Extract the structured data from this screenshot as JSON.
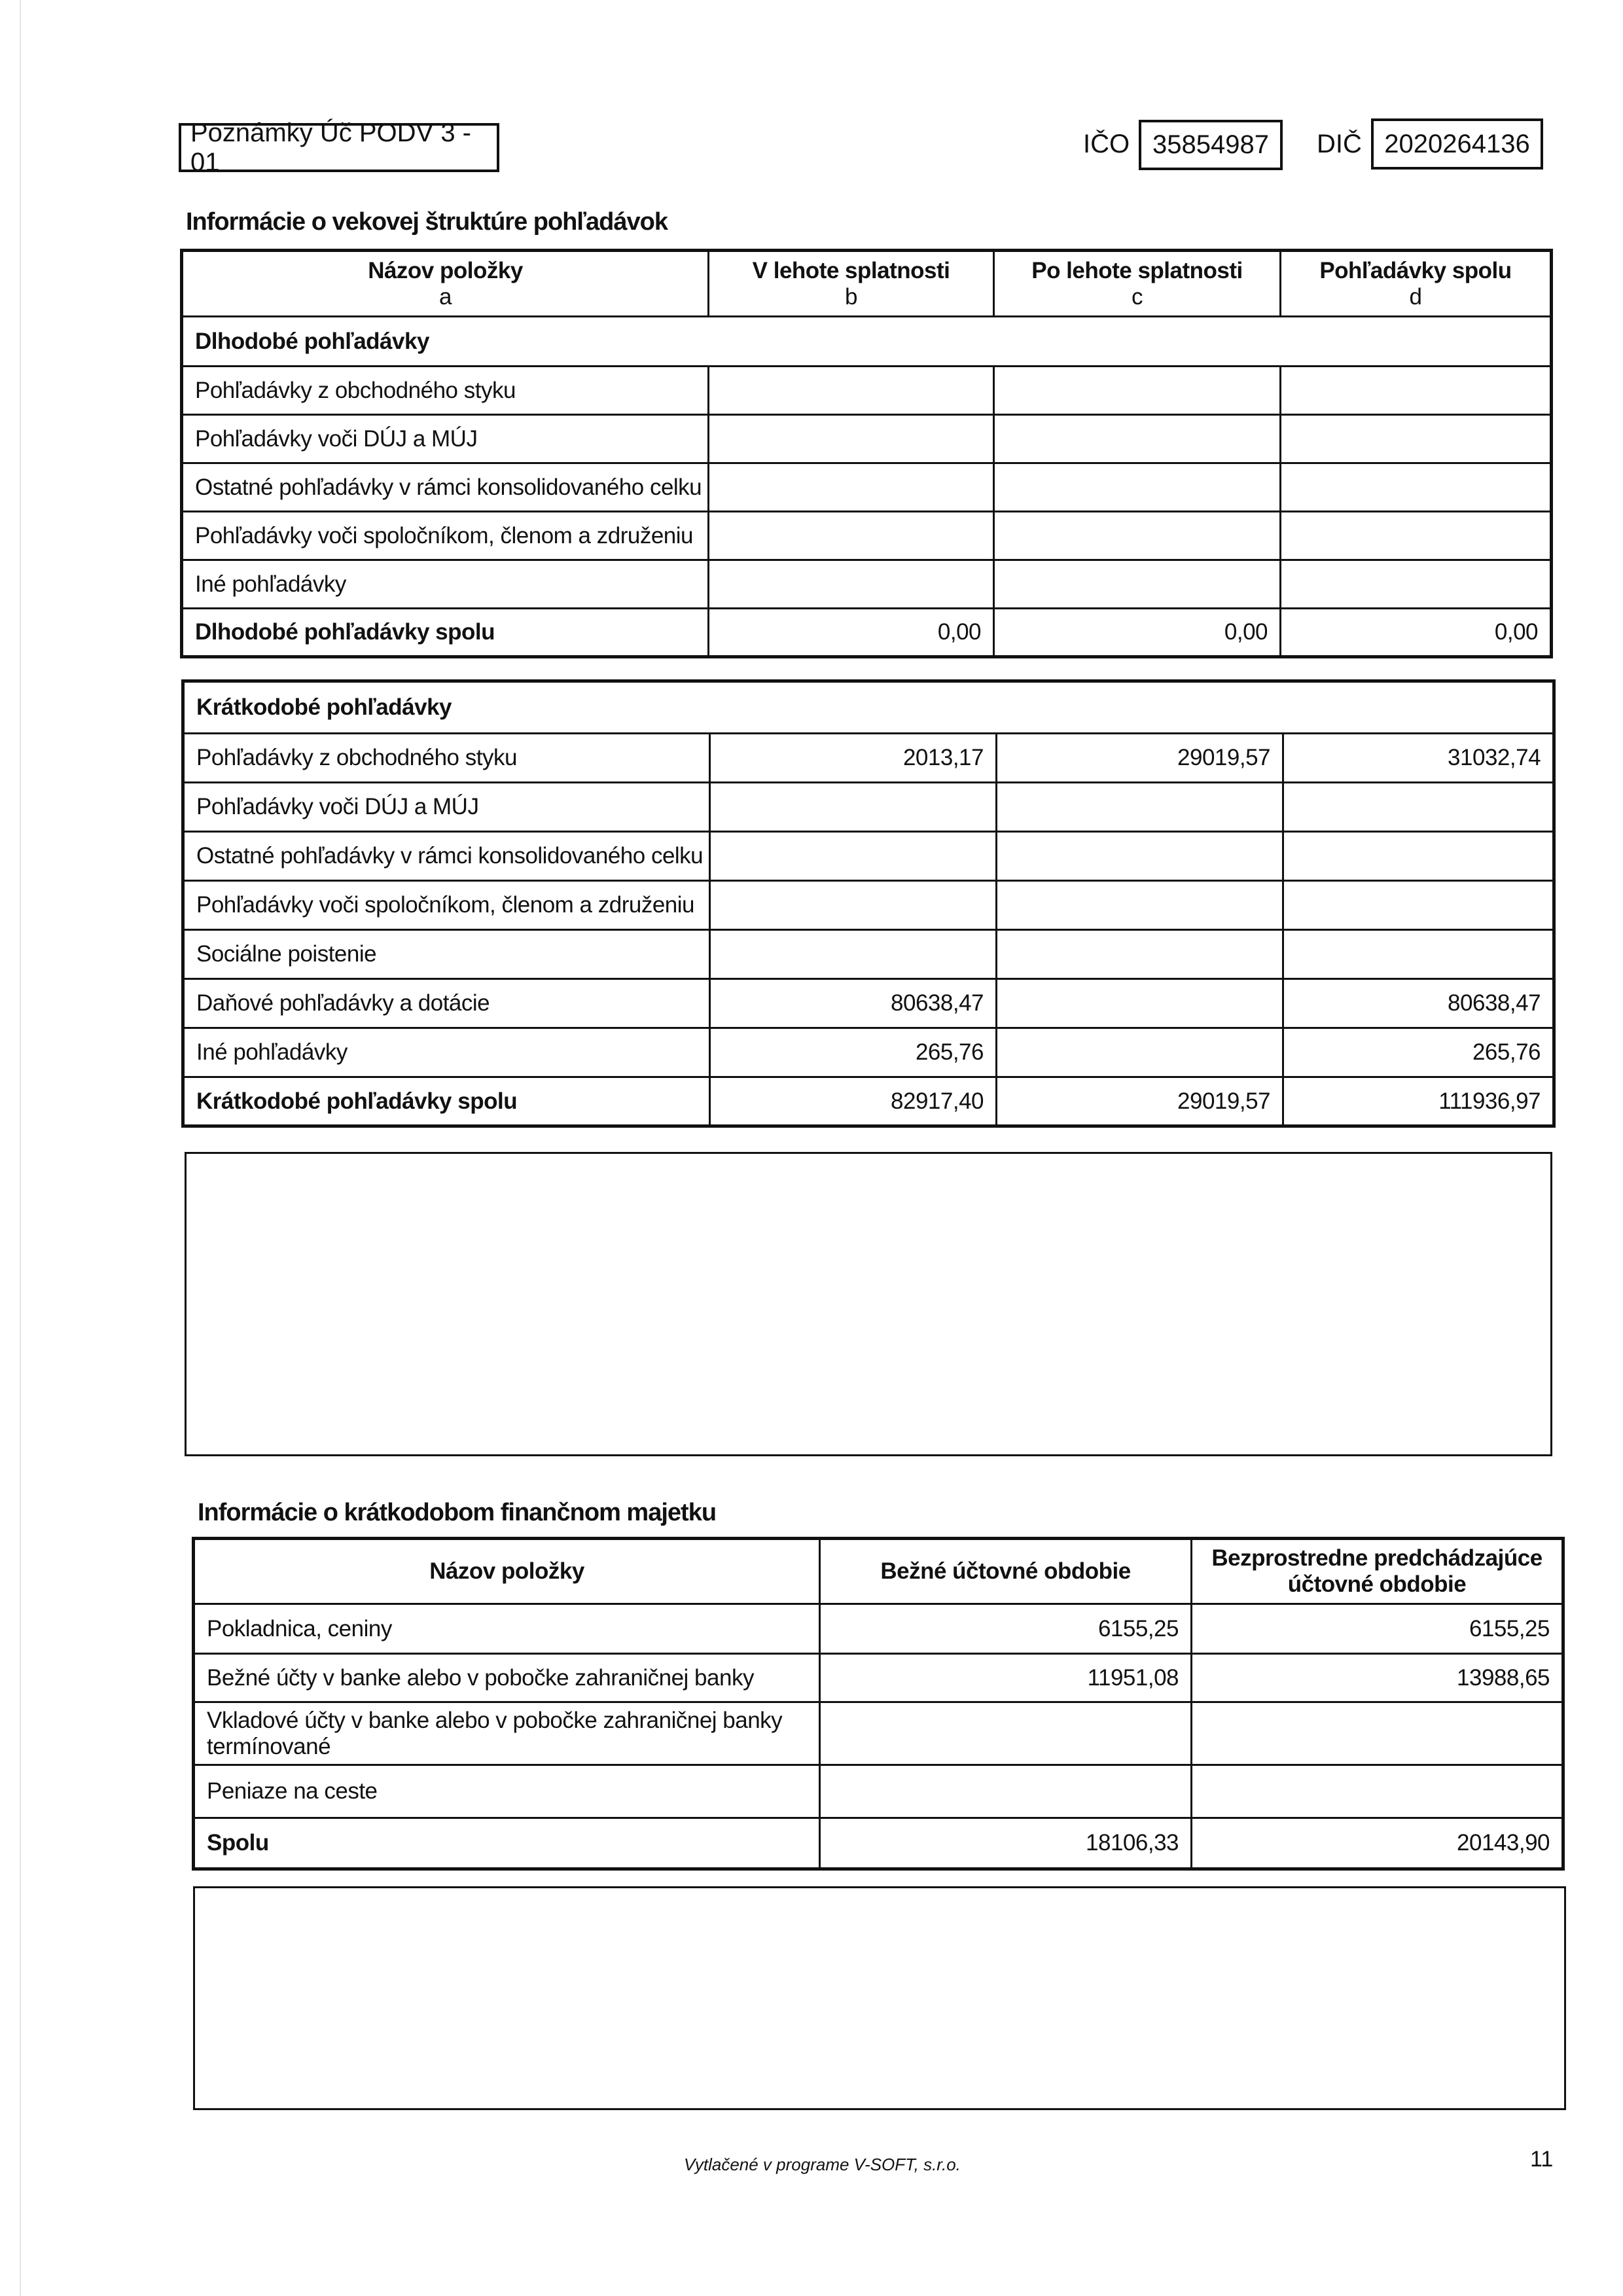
{
  "header": {
    "form_label": "Poznámky Úč PODV 3 - 01",
    "ico_label": "IČO",
    "ico_value": "35854987",
    "dic_label": "DIČ",
    "dic_value": "2020264136"
  },
  "receivables": {
    "title": "Informácie o vekovej štruktúre pohľadávok",
    "columns": [
      {
        "label": "Názov položky",
        "sub": "a"
      },
      {
        "label": "V lehote splatnosti",
        "sub": "b"
      },
      {
        "label": "Po lehote splatnosti",
        "sub": "c"
      },
      {
        "label": "Pohľadávky spolu",
        "sub": "d"
      }
    ],
    "long_term": {
      "section_label": "Dlhodobé pohľadávky",
      "rows": [
        {
          "name": "Pohľadávky z obchodného styku",
          "b": "",
          "c": "",
          "d": ""
        },
        {
          "name": "Pohľadávky voči DÚJ a MÚJ",
          "b": "",
          "c": "",
          "d": ""
        },
        {
          "name": "Ostatné pohľadávky v rámci konsolidovaného celku",
          "b": "",
          "c": "",
          "d": ""
        },
        {
          "name": "Pohľadávky voči spoločníkom, členom a združeniu",
          "b": "",
          "c": "",
          "d": ""
        },
        {
          "name": "Iné pohľadávky",
          "b": "",
          "c": "",
          "d": ""
        }
      ],
      "total": {
        "name": "Dlhodobé pohľadávky spolu",
        "b": "0,00",
        "c": "0,00",
        "d": "0,00"
      }
    },
    "short_term": {
      "section_label": "Krátkodobé pohľadávky",
      "rows": [
        {
          "name": "Pohľadávky z obchodného styku",
          "b": "2013,17",
          "c": "29019,57",
          "d": "31032,74"
        },
        {
          "name": "Pohľadávky voči DÚJ a MÚJ",
          "b": "",
          "c": "",
          "d": ""
        },
        {
          "name": "Ostatné pohľadávky v rámci konsolidovaného celku",
          "b": "",
          "c": "",
          "d": ""
        },
        {
          "name": "Pohľadávky voči spoločníkom, členom a združeniu",
          "b": "",
          "c": "",
          "d": ""
        },
        {
          "name": "Sociálne poistenie",
          "b": "",
          "c": "",
          "d": ""
        },
        {
          "name": "Daňové pohľadávky a dotácie",
          "b": "80638,47",
          "c": "",
          "d": "80638,47"
        },
        {
          "name": "Iné pohľadávky",
          "b": "265,76",
          "c": "",
          "d": "265,76"
        }
      ],
      "total": {
        "name": "Krátkodobé pohľadávky spolu",
        "b": "82917,40",
        "c": "29019,57",
        "d": "111936,97"
      }
    }
  },
  "financial_assets": {
    "title": "Informácie o krátkodobom finančnom majetku",
    "columns": [
      "Názov položky",
      "Bežné účtovné obdobie",
      "Bezprostredne predchádzajúce účtovné obdobie"
    ],
    "rows": [
      {
        "name": "Pokladnica, ceniny",
        "current": "6155,25",
        "previous": "6155,25"
      },
      {
        "name": "Bežné účty v banke alebo v pobočke zahraničnej banky",
        "current": "11951,08",
        "previous": "13988,65"
      },
      {
        "name": "Vkladové účty v banke alebo v pobočke zahraničnej banky termínované",
        "current": "",
        "previous": ""
      },
      {
        "name": "Peniaze na ceste",
        "current": "",
        "previous": ""
      }
    ],
    "total": {
      "name": "Spolu",
      "current": "18106,33",
      "previous": "20143,90"
    }
  },
  "footer": {
    "printed_by": "Vytlačené v programe V-SOFT, s.r.o.",
    "page_number": "11"
  }
}
